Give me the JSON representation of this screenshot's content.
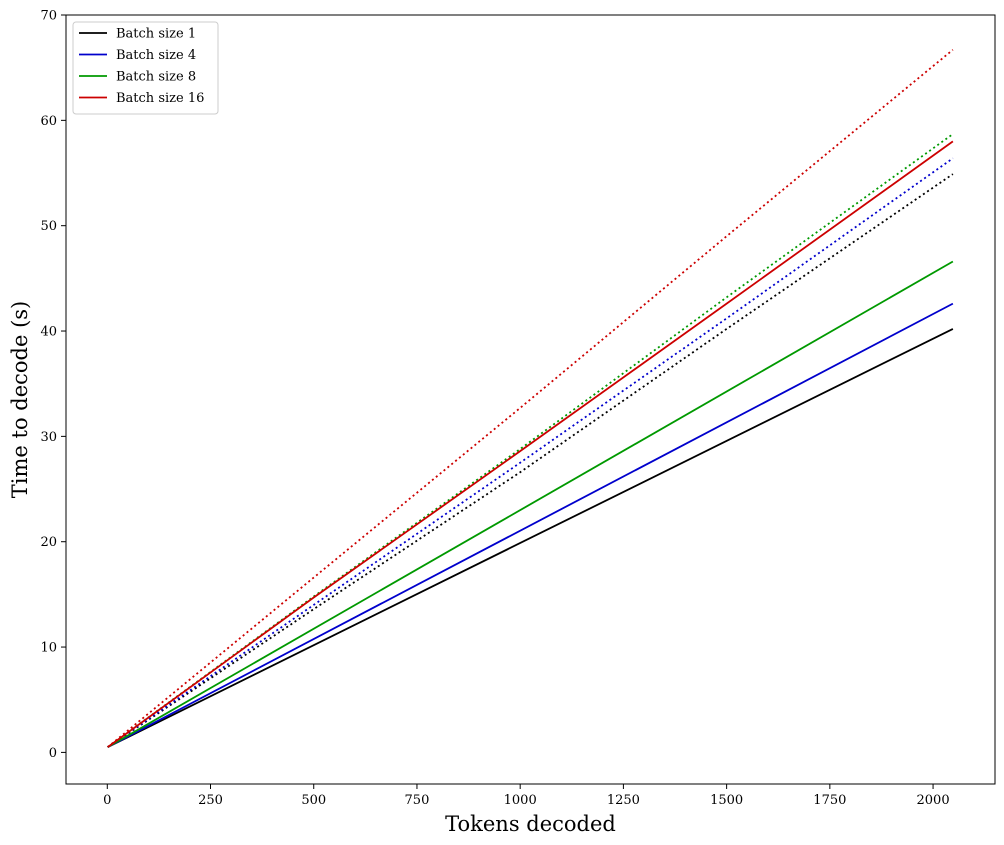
{
  "chart_data": {
    "type": "line",
    "title": "",
    "xlabel": "Tokens decoded",
    "ylabel": "Time to decode (s)",
    "xlim": [
      -100,
      2150
    ],
    "ylim": [
      -3,
      70
    ],
    "xticks": [
      0,
      250,
      500,
      750,
      1000,
      1250,
      1500,
      1750,
      2000
    ],
    "yticks": [
      0,
      10,
      20,
      30,
      40,
      50,
      60,
      70
    ],
    "grid": false,
    "legend_position": "top-left",
    "series": [
      {
        "name": "Batch size 1",
        "color": "#000000",
        "style": "solid",
        "x": [
          1,
          2048
        ],
        "y": [
          0.5,
          40.2
        ]
      },
      {
        "name": "Batch size 4",
        "color": "#0000cc",
        "style": "solid",
        "x": [
          1,
          2048
        ],
        "y": [
          0.5,
          42.6
        ]
      },
      {
        "name": "Batch size 8",
        "color": "#009900",
        "style": "solid",
        "x": [
          1,
          2048
        ],
        "y": [
          0.5,
          46.6
        ]
      },
      {
        "name": "Batch size 16",
        "color": "#cc0000",
        "style": "solid",
        "x": [
          1,
          500,
          1000,
          1500,
          2048
        ],
        "y": [
          0.5,
          14.7,
          28.6,
          42.6,
          58.0
        ]
      },
      {
        "color": "#000000",
        "style": "dotted",
        "x": [
          1,
          500,
          1000,
          1500,
          2048
        ],
        "y": [
          0.5,
          13.6,
          26.6,
          40.2,
          54.9
        ]
      },
      {
        "color": "#0000cc",
        "style": "dotted",
        "x": [
          1,
          500,
          1000,
          1500,
          2048
        ],
        "y": [
          0.5,
          14.0,
          27.5,
          41.2,
          56.4
        ]
      },
      {
        "color": "#009900",
        "style": "dotted",
        "x": [
          1,
          500,
          1000,
          1500,
          2048
        ],
        "y": [
          0.5,
          14.8,
          28.8,
          43.2,
          58.7
        ]
      },
      {
        "color": "#cc0000",
        "style": "dotted",
        "x": [
          1,
          500,
          1000,
          1500,
          2048
        ],
        "y": [
          0.5,
          16.6,
          32.7,
          49.0,
          66.7
        ]
      }
    ]
  }
}
